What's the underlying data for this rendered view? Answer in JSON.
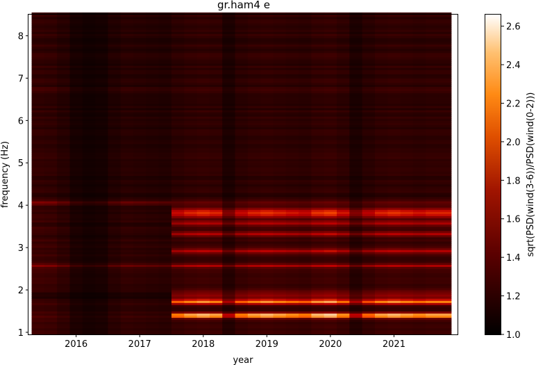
{
  "chart_data": {
    "type": "heatmap",
    "title": "gr.ham4 e",
    "xlabel": "year",
    "ylabel": "frequency (Hz)",
    "colorbar_label": "sqrt(PSD(wind(3-6))/PSD(wind(0-2)))",
    "colormap": "gist_heat",
    "xlim": [
      2015.25,
      2022.0
    ],
    "ylim": [
      0.95,
      8.5
    ],
    "clim": [
      1.0,
      2.66
    ],
    "x_ticks": [
      {
        "value": 2016,
        "label": "2016"
      },
      {
        "value": 2017,
        "label": "2017"
      },
      {
        "value": 2018,
        "label": "2018"
      },
      {
        "value": 2019,
        "label": "2019"
      },
      {
        "value": 2020,
        "label": "2020"
      },
      {
        "value": 2021,
        "label": "2021"
      }
    ],
    "y_ticks": [
      {
        "value": 1,
        "label": "1"
      },
      {
        "value": 2,
        "label": "2"
      },
      {
        "value": 3,
        "label": "3"
      },
      {
        "value": 4,
        "label": "4"
      },
      {
        "value": 5,
        "label": "5"
      },
      {
        "value": 6,
        "label": "6"
      },
      {
        "value": 7,
        "label": "7"
      },
      {
        "value": 8,
        "label": "8"
      }
    ],
    "colorbar_ticks": [
      {
        "value": 1.0,
        "label": "1.0"
      },
      {
        "value": 1.2,
        "label": "1.2"
      },
      {
        "value": 1.4,
        "label": "1.4"
      },
      {
        "value": 1.6,
        "label": "1.6"
      },
      {
        "value": 1.8,
        "label": "1.8"
      },
      {
        "value": 2.0,
        "label": "2.0"
      },
      {
        "value": 2.2,
        "label": "2.2"
      },
      {
        "value": 2.4,
        "label": "2.4"
      },
      {
        "value": 2.6,
        "label": "2.6"
      }
    ],
    "time_columns": [
      2015.4,
      2015.6,
      2015.8,
      2016.0,
      2016.2,
      2016.4,
      2016.6,
      2016.8,
      2017.0,
      2017.2,
      2017.4,
      2017.6,
      2017.8,
      2018.0,
      2018.2,
      2018.4,
      2018.6,
      2018.8,
      2019.0,
      2019.2,
      2019.4,
      2019.6,
      2019.8,
      2020.0,
      2020.2,
      2020.4,
      2020.6,
      2020.8,
      2021.0,
      2021.2,
      2021.4,
      2021.6,
      2021.8
    ],
    "time_activity": [
      1.05,
      1.0,
      0.8,
      0.5,
      0.4,
      0.45,
      0.7,
      0.85,
      0.8,
      0.75,
      0.7,
      0.9,
      1.0,
      1.05,
      1.0,
      0.6,
      0.9,
      1.0,
      1.05,
      1.0,
      0.95,
      0.9,
      1.05,
      1.1,
      0.95,
      0.6,
      0.85,
      1.0,
      1.05,
      1.0,
      0.95,
      1.0,
      1.0
    ],
    "frequency_bands": [
      {
        "freq": 1.38,
        "width": 0.04,
        "value_before_2017_6": 1.25,
        "value_after_2017_6": 2.5
      },
      {
        "freq": 1.7,
        "width": 0.04,
        "value_before_2017_6": 1.2,
        "value_after_2017_6": 2.15
      },
      {
        "freq": 1.85,
        "width": 0.08,
        "value_before_2017_6": 1.1,
        "value_after_2017_6": 1.55
      },
      {
        "freq": 2.55,
        "width": 0.03,
        "value_before_2017_6": 1.45,
        "value_after_2017_6": 1.65
      },
      {
        "freq": 2.9,
        "width": 0.04,
        "value_before_2017_6": 1.2,
        "value_after_2017_6": 1.75
      },
      {
        "freq": 3.3,
        "width": 0.04,
        "value_before_2017_6": 1.15,
        "value_after_2017_6": 1.7
      },
      {
        "freq": 3.55,
        "width": 0.04,
        "value_before_2017_6": 1.15,
        "value_after_2017_6": 1.7
      },
      {
        "freq": 3.8,
        "width": 0.08,
        "value_before_2017_6": 1.15,
        "value_after_2017_6": 1.9
      },
      {
        "freq": 4.03,
        "width": 0.02,
        "value_before_2017_6": 1.6,
        "value_after_2017_6": 1.4
      },
      {
        "freq": 6.73,
        "width": 0.02,
        "value_before_2017_6": 1.35,
        "value_after_2017_6": 1.3
      }
    ],
    "background_level": 1.2
  }
}
